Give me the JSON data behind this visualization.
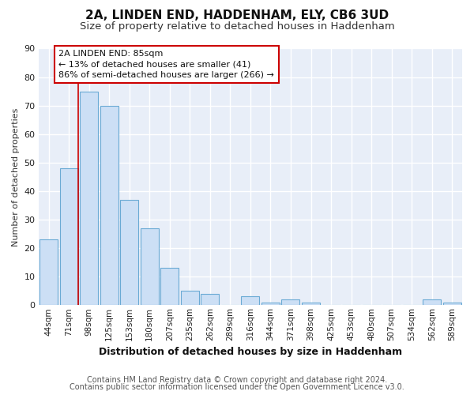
{
  "title": "2A, LINDEN END, HADDENHAM, ELY, CB6 3UD",
  "subtitle": "Size of property relative to detached houses in Haddenham",
  "xlabel": "Distribution of detached houses by size in Haddenham",
  "ylabel": "Number of detached properties",
  "bar_labels": [
    "44sqm",
    "71sqm",
    "98sqm",
    "125sqm",
    "153sqm",
    "180sqm",
    "207sqm",
    "235sqm",
    "262sqm",
    "289sqm",
    "316sqm",
    "344sqm",
    "371sqm",
    "398sqm",
    "425sqm",
    "453sqm",
    "480sqm",
    "507sqm",
    "534sqm",
    "562sqm",
    "589sqm"
  ],
  "bar_values": [
    23,
    48,
    75,
    70,
    37,
    27,
    13,
    5,
    4,
    0,
    3,
    1,
    2,
    1,
    0,
    0,
    0,
    0,
    0,
    2,
    1
  ],
  "bar_color": "#ccdff5",
  "bar_edge_color": "#6aaad4",
  "ylim": [
    0,
    90
  ],
  "yticks": [
    0,
    10,
    20,
    30,
    40,
    50,
    60,
    70,
    80,
    90
  ],
  "vline_color": "#cc0000",
  "annotation_line1": "2A LINDEN END: 85sqm",
  "annotation_line2": "← 13% of detached houses are smaller (41)",
  "annotation_line3": "86% of semi-detached houses are larger (266) →",
  "annotation_box_edgecolor": "#cc0000",
  "annotation_box_facecolor": "#ffffff",
  "footer_line1": "Contains HM Land Registry data © Crown copyright and database right 2024.",
  "footer_line2": "Contains public sector information licensed under the Open Government Licence v3.0.",
  "plot_bg_color": "#e8eef8",
  "fig_bg_color": "#ffffff",
  "grid_color": "#ffffff",
  "title_fontsize": 11,
  "subtitle_fontsize": 9.5,
  "xlabel_fontsize": 9,
  "ylabel_fontsize": 8,
  "footer_fontsize": 7,
  "tick_label_fontsize": 7.5
}
